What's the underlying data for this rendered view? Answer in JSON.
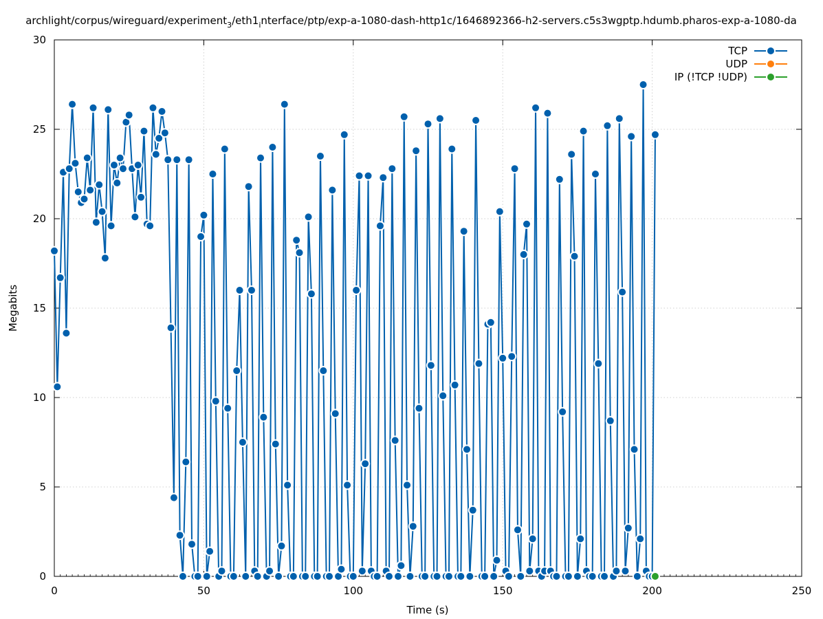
{
  "chart_data": {
    "type": "line",
    "title": "archlight/corpus/wireguard/experiment",
    "title_sub1": "3",
    "title_mid": "/eth1",
    "title_sub2": "i",
    "title_end": "nterface/ptp/exp-a-1080-dash-http1c/1646892366-h2-servers.c5s3wgptp.hdumb.pharos-exp-a-1080-da",
    "xlabel": "Time (s)",
    "ylabel": "Megabits",
    "xlim": [
      0,
      250
    ],
    "ylim": [
      0,
      30
    ],
    "xticks": [
      0,
      50,
      100,
      150,
      200,
      250
    ],
    "yticks": [
      0,
      5,
      10,
      15,
      20,
      25,
      30
    ],
    "grid": true,
    "legend_position": "top-right",
    "series": [
      {
        "name": "TCP",
        "color": "#0060ad",
        "x": [
          0,
          1,
          2,
          3,
          4,
          5,
          6,
          7,
          8,
          9,
          10,
          11,
          12,
          13,
          14,
          15,
          16,
          17,
          18,
          19,
          20,
          21,
          22,
          23,
          24,
          25,
          26,
          27,
          28,
          29,
          30,
          31,
          32,
          33,
          34,
          35,
          36,
          37,
          38,
          39,
          40,
          41,
          42,
          43,
          44,
          45,
          46,
          47,
          48,
          49,
          50,
          51,
          52,
          53,
          54,
          55,
          56,
          57,
          58,
          59,
          60,
          61,
          62,
          63,
          64,
          65,
          66,
          67,
          68,
          69,
          70,
          71,
          72,
          73,
          74,
          75,
          76,
          77,
          78,
          79,
          80,
          81,
          82,
          83,
          84,
          85,
          86,
          87,
          88,
          89,
          90,
          91,
          92,
          93,
          94,
          95,
          96,
          97,
          98,
          99,
          100,
          101,
          102,
          103,
          104,
          105,
          106,
          107,
          108,
          109,
          110,
          111,
          112,
          113,
          114,
          115,
          116,
          117,
          118,
          119,
          120,
          121,
          122,
          123,
          124,
          125,
          126,
          127,
          128,
          129,
          130,
          131,
          132,
          133,
          134,
          135,
          136,
          137,
          138,
          139,
          140,
          141,
          142,
          143,
          144,
          145,
          146,
          147,
          148,
          149,
          150,
          151,
          152,
          153,
          154,
          155,
          156,
          157,
          158,
          159,
          160,
          161,
          162,
          163,
          164,
          165,
          166,
          167,
          168,
          169,
          170,
          171,
          172,
          173,
          174,
          175,
          176,
          177,
          178,
          179,
          180,
          181,
          182,
          183,
          184,
          185,
          186,
          187,
          188,
          189,
          190,
          191,
          192,
          193,
          194,
          195,
          196,
          197,
          198,
          199,
          200,
          201
        ],
        "y": [
          18.2,
          10.6,
          16.7,
          22.6,
          13.6,
          22.8,
          26.4,
          23.1,
          21.5,
          20.9,
          21.1,
          23.4,
          21.6,
          26.2,
          19.8,
          21.9,
          20.4,
          17.8,
          26.1,
          19.6,
          23.0,
          22.0,
          23.4,
          22.8,
          25.4,
          25.8,
          22.8,
          20.1,
          23.0,
          21.2,
          24.9,
          19.7,
          19.6,
          26.2,
          23.6,
          24.5,
          26.0,
          24.8,
          23.3,
          13.9,
          4.4,
          23.3,
          2.3,
          0,
          6.4,
          23.3,
          1.8,
          0,
          0,
          19.0,
          20.2,
          0,
          1.4,
          22.5,
          9.8,
          0,
          0.3,
          23.9,
          9.4,
          0,
          0,
          11.5,
          16.0,
          7.5,
          0,
          21.8,
          16.0,
          0.3,
          0,
          23.4,
          8.9,
          0,
          0.3,
          24.0,
          7.4,
          0,
          1.7,
          26.4,
          5.1,
          0,
          0,
          18.8,
          18.1,
          0,
          0,
          20.1,
          15.8,
          0,
          0,
          23.5,
          11.5,
          0,
          0,
          21.6,
          9.1,
          0,
          0.4,
          24.7,
          5.1,
          0,
          0,
          16.0,
          22.4,
          0.3,
          6.3,
          22.4,
          0.3,
          0,
          0,
          19.6,
          22.3,
          0.3,
          0,
          22.8,
          7.6,
          0,
          0.6,
          25.7,
          5.1,
          0,
          2.8,
          23.8,
          9.4,
          0,
          0,
          25.3,
          11.8,
          0,
          0,
          25.6,
          10.1,
          0,
          0,
          23.9,
          10.7,
          0,
          0,
          19.3,
          7.1,
          0,
          3.7,
          25.5,
          11.9,
          0,
          0,
          14.1,
          14.2,
          0,
          0.9,
          20.4,
          12.2,
          0.3,
          0,
          12.3,
          22.8,
          2.6,
          0,
          18.0,
          19.7,
          0.3,
          2.1,
          26.2,
          0.3,
          0,
          0.3,
          25.9,
          0.3,
          0,
          0,
          22.2,
          9.2,
          0,
          0,
          23.6,
          17.9,
          0,
          2.1,
          24.9,
          0.3,
          0,
          0,
          22.5,
          11.9,
          0,
          0,
          25.2,
          8.7,
          0,
          0.3,
          25.6,
          15.9,
          0.3,
          2.7,
          24.6,
          7.1,
          0,
          2.1,
          27.5,
          0.3,
          0,
          0,
          24.7
        ]
      },
      {
        "name": "UDP",
        "color": "#ff7f0e",
        "x": [],
        "y": []
      },
      {
        "name": "IP (!TCP  !UDP)",
        "color": "#2ca02c",
        "x": [
          201
        ],
        "y": [
          0
        ]
      }
    ]
  }
}
